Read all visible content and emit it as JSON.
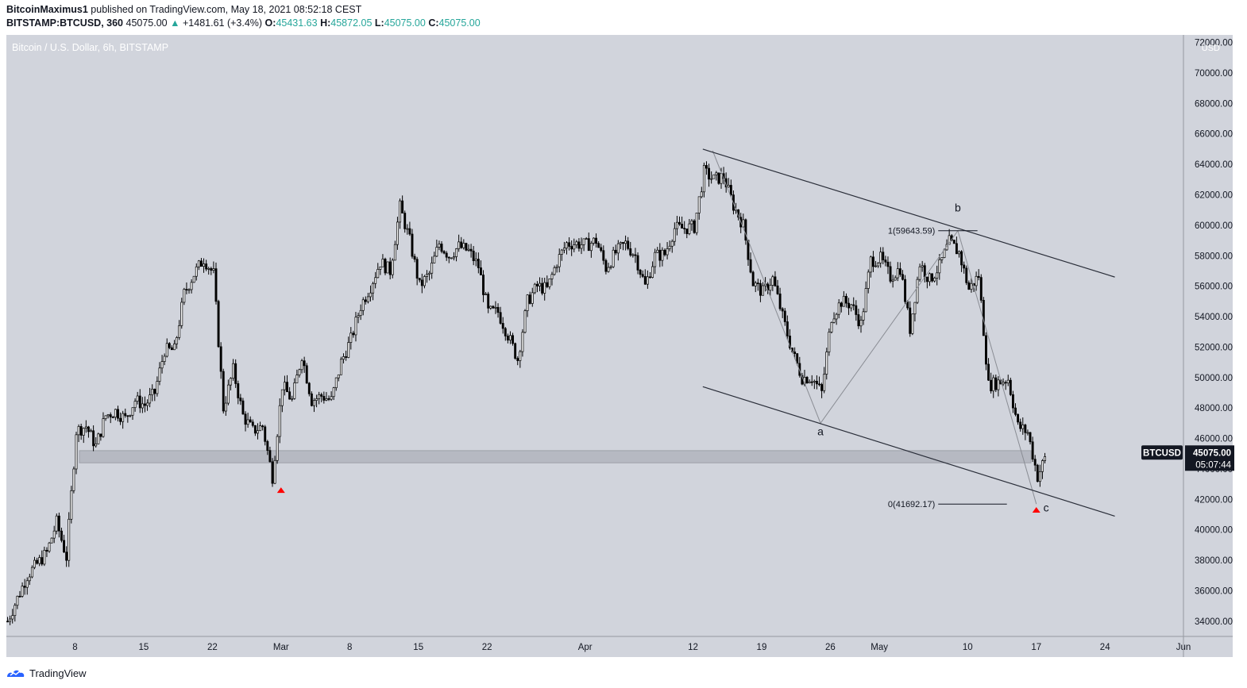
{
  "header": {
    "author": "BitcoinMaximus1",
    "published": "published on TradingView.com, May 18, 2021 08:52:18 CEST",
    "symbol": "BITSTAMP:BTCUSD, 360",
    "last": "45075.00",
    "change": "+1481.61 (+3.4%)",
    "o_label": "O:",
    "o_value": "45431.63",
    "h_label": "H:",
    "h_value": "45872.05",
    "l_label": "L:",
    "l_value": "45075.00",
    "c_label": "C:",
    "c_value": "45075.00"
  },
  "footer": {
    "brand": "TradingView"
  },
  "colors": {
    "background": "#d1d4dc",
    "up": "#26a69a",
    "marker": "#ff0000",
    "candle_up": "#ffffff",
    "candle_down": "#000000"
  },
  "chart_data": {
    "type": "candlestick",
    "title": "Bitcoin / U.S. Dollar, 6h, BITSTAMP",
    "ylabel": "USD",
    "ylim": [
      33000,
      72500
    ],
    "y_ticks": [
      34000,
      36000,
      38000,
      40000,
      42000,
      44000,
      46000,
      48000,
      50000,
      52000,
      54000,
      56000,
      58000,
      60000,
      62000,
      64000,
      66000,
      68000,
      70000,
      72000
    ],
    "y_tick_labels": [
      "34000.00",
      "36000.00",
      "38000.00",
      "40000.00",
      "42000.00",
      "44000.00",
      "46000.00",
      "48000.00",
      "50000.00",
      "52000.00",
      "54000.00",
      "56000.00",
      "58000.00",
      "60000.00",
      "62000.00",
      "64000.00",
      "66000.00",
      "68000.00",
      "70000.00",
      "72000.00"
    ],
    "x_range": [
      "2021-02-01",
      "2021-06-01"
    ],
    "x_ticks": [
      {
        "date": "2021-02-08",
        "label": "8"
      },
      {
        "date": "2021-02-15",
        "label": "15"
      },
      {
        "date": "2021-02-22",
        "label": "22"
      },
      {
        "date": "2021-03-01",
        "label": "Mar"
      },
      {
        "date": "2021-03-08",
        "label": "8"
      },
      {
        "date": "2021-03-15",
        "label": "15"
      },
      {
        "date": "2021-03-22",
        "label": "22"
      },
      {
        "date": "2021-04-01",
        "label": "Apr"
      },
      {
        "date": "2021-04-12",
        "label": "12"
      },
      {
        "date": "2021-04-19",
        "label": "19"
      },
      {
        "date": "2021-04-26",
        "label": "26"
      },
      {
        "date": "2021-05-01",
        "label": "May"
      },
      {
        "date": "2021-05-10",
        "label": "10"
      },
      {
        "date": "2021-05-17",
        "label": "17"
      },
      {
        "date": "2021-05-24",
        "label": "24"
      },
      {
        "date": "2021-06-01",
        "label": "Jun"
      }
    ],
    "price_path": [
      [
        "2021-02-01",
        34000
      ],
      [
        "2021-02-03",
        37000
      ],
      [
        "2021-02-05",
        38500
      ],
      [
        "2021-02-06",
        40500
      ],
      [
        "2021-02-07",
        38200
      ],
      [
        "2021-02-08",
        46500
      ],
      [
        "2021-02-09",
        46800
      ],
      [
        "2021-02-10",
        45500
      ],
      [
        "2021-02-11",
        47500
      ],
      [
        "2021-02-12",
        47800
      ],
      [
        "2021-02-13",
        47300
      ],
      [
        "2021-02-14",
        48500
      ],
      [
        "2021-02-15",
        48200
      ],
      [
        "2021-02-16",
        49000
      ],
      [
        "2021-02-17",
        51800
      ],
      [
        "2021-02-18",
        51800
      ],
      [
        "2021-02-19",
        55500
      ],
      [
        "2021-02-20",
        56800
      ],
      [
        "2021-02-21",
        57800
      ],
      [
        "2021-02-22",
        56800
      ],
      [
        "2021-02-23",
        48000
      ],
      [
        "2021-02-24",
        50500
      ],
      [
        "2021-02-25",
        47500
      ],
      [
        "2021-02-26",
        46500
      ],
      [
        "2021-02-27",
        46800
      ],
      [
        "2021-02-28",
        43500
      ],
      [
        "2021-03-01",
        49500
      ],
      [
        "2021-03-02",
        48500
      ],
      [
        "2021-03-03",
        51500
      ],
      [
        "2021-03-04",
        48500
      ],
      [
        "2021-03-05",
        48800
      ],
      [
        "2021-03-06",
        48500
      ],
      [
        "2021-03-07",
        51000
      ],
      [
        "2021-03-08",
        52500
      ],
      [
        "2021-03-09",
        54700
      ],
      [
        "2021-03-10",
        56000
      ],
      [
        "2021-03-11",
        57600
      ],
      [
        "2021-03-12",
        57000
      ],
      [
        "2021-03-13",
        61200
      ],
      [
        "2021-03-14",
        59000
      ],
      [
        "2021-03-15",
        56000
      ],
      [
        "2021-03-16",
        56800
      ],
      [
        "2021-03-17",
        58800
      ],
      [
        "2021-03-18",
        58000
      ],
      [
        "2021-03-19",
        58600
      ],
      [
        "2021-03-20",
        58300
      ],
      [
        "2021-03-21",
        57300
      ],
      [
        "2021-03-22",
        54300
      ],
      [
        "2021-03-23",
        54300
      ],
      [
        "2021-03-24",
        52800
      ],
      [
        "2021-03-25",
        51200
      ],
      [
        "2021-03-26",
        55000
      ],
      [
        "2021-03-27",
        56000
      ],
      [
        "2021-03-28",
        55800
      ],
      [
        "2021-03-29",
        57600
      ],
      [
        "2021-03-30",
        58800
      ],
      [
        "2021-03-31",
        58800
      ],
      [
        "2021-04-01",
        58700
      ],
      [
        "2021-04-02",
        59000
      ],
      [
        "2021-04-03",
        57200
      ],
      [
        "2021-04-04",
        58200
      ],
      [
        "2021-04-05",
        58800
      ],
      [
        "2021-04-06",
        58000
      ],
      [
        "2021-04-07",
        56000
      ],
      [
        "2021-04-08",
        58000
      ],
      [
        "2021-04-09",
        58100
      ],
      [
        "2021-04-10",
        59800
      ],
      [
        "2021-04-11",
        59800
      ],
      [
        "2021-04-12",
        59900
      ],
      [
        "2021-04-13",
        63500
      ],
      [
        "2021-04-14",
        63000
      ],
      [
        "2021-04-15",
        63200
      ],
      [
        "2021-04-16",
        61300
      ],
      [
        "2021-04-17",
        60000
      ],
      [
        "2021-04-18",
        56200
      ],
      [
        "2021-04-19",
        55600
      ],
      [
        "2021-04-20",
        56500
      ],
      [
        "2021-04-21",
        54000
      ],
      [
        "2021-04-22",
        51700
      ],
      [
        "2021-04-23",
        50000
      ],
      [
        "2021-04-24",
        50000
      ],
      [
        "2021-04-25",
        49000
      ],
      [
        "2021-04-26",
        54000
      ],
      [
        "2021-04-27",
        55000
      ],
      [
        "2021-04-28",
        54800
      ],
      [
        "2021-04-29",
        53500
      ],
      [
        "2021-04-30",
        57700
      ],
      [
        "2021-05-01",
        57800
      ],
      [
        "2021-05-02",
        56600
      ],
      [
        "2021-05-03",
        57200
      ],
      [
        "2021-05-04",
        53200
      ],
      [
        "2021-05-05",
        57500
      ],
      [
        "2021-05-06",
        56400
      ],
      [
        "2021-05-07",
        57300
      ],
      [
        "2021-05-08",
        58900
      ],
      [
        "2021-05-09",
        58200
      ],
      [
        "2021-05-10",
        55800
      ],
      [
        "2021-05-11",
        56700
      ],
      [
        "2021-05-12",
        49500
      ],
      [
        "2021-05-13",
        49700
      ],
      [
        "2021-05-14",
        49900
      ],
      [
        "2021-05-15",
        46800
      ],
      [
        "2021-05-16",
        46400
      ],
      [
        "2021-05-17",
        43500
      ],
      [
        "2021-05-18",
        45075
      ]
    ],
    "support_zone": {
      "from": 44400,
      "to": 45200
    },
    "channel_upper": [
      [
        "2021-04-13",
        65000
      ],
      [
        "2021-05-25",
        56600
      ]
    ],
    "channel_lower": [
      [
        "2021-04-13",
        49400
      ],
      [
        "2021-05-25",
        40900
      ]
    ],
    "wave_path": [
      [
        "2021-04-14",
        64900
      ],
      [
        "2021-04-25",
        47000
      ],
      [
        "2021-05-09",
        59643.59
      ],
      [
        "2021-05-17",
        41692.17
      ]
    ],
    "wave_labels": [
      {
        "text": "a",
        "date": "2021-04-25",
        "price": 46200
      },
      {
        "text": "b",
        "date": "2021-05-09",
        "price": 60900
      },
      {
        "text": "c",
        "date": "2021-05-18",
        "price": 41200
      }
    ],
    "fib_levels": [
      {
        "label": "1(59643.59)",
        "value": 59643.59,
        "from": "2021-05-07",
        "to": "2021-05-11"
      },
      {
        "label": "0(41692.17)",
        "value": 41692.17,
        "from": "2021-05-07",
        "to": "2021-05-14"
      }
    ],
    "markers": [
      {
        "date": "2021-03-01",
        "price": 43000
      },
      {
        "date": "2021-05-17",
        "price": 41700
      }
    ],
    "last_price": {
      "symbol": "BTCUSD",
      "value": "45075.00",
      "countdown": "05:07:44"
    }
  }
}
